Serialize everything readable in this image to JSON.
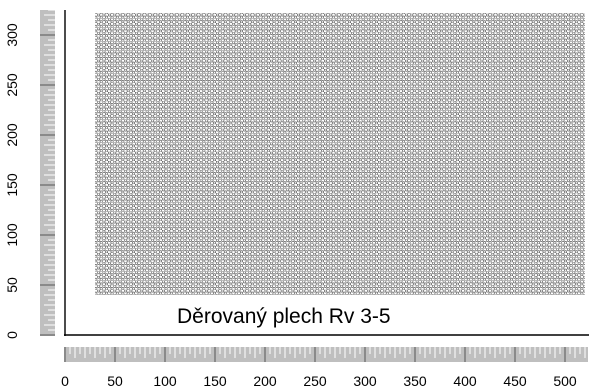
{
  "caption": "Děrovaný plech Rv 3-5",
  "x_axis": {
    "ticks": [
      "0",
      "50",
      "100",
      "150",
      "200",
      "250",
      "300",
      "350",
      "400",
      "450",
      "500"
    ],
    "min": 0,
    "max": 520
  },
  "y_axis": {
    "ticks": [
      "0",
      "50",
      "100",
      "150",
      "200",
      "250",
      "300"
    ],
    "min": 0,
    "max": 325
  },
  "sheet": {
    "perforated_area": {
      "x_from": 30,
      "x_to": 520,
      "y_from": 40,
      "y_to": 322
    },
    "hole_diameter": 3,
    "hole_pitch": 5
  },
  "colors": {
    "ink": "#000000",
    "ruler": "#bfbfbf",
    "hole": "#333333"
  }
}
